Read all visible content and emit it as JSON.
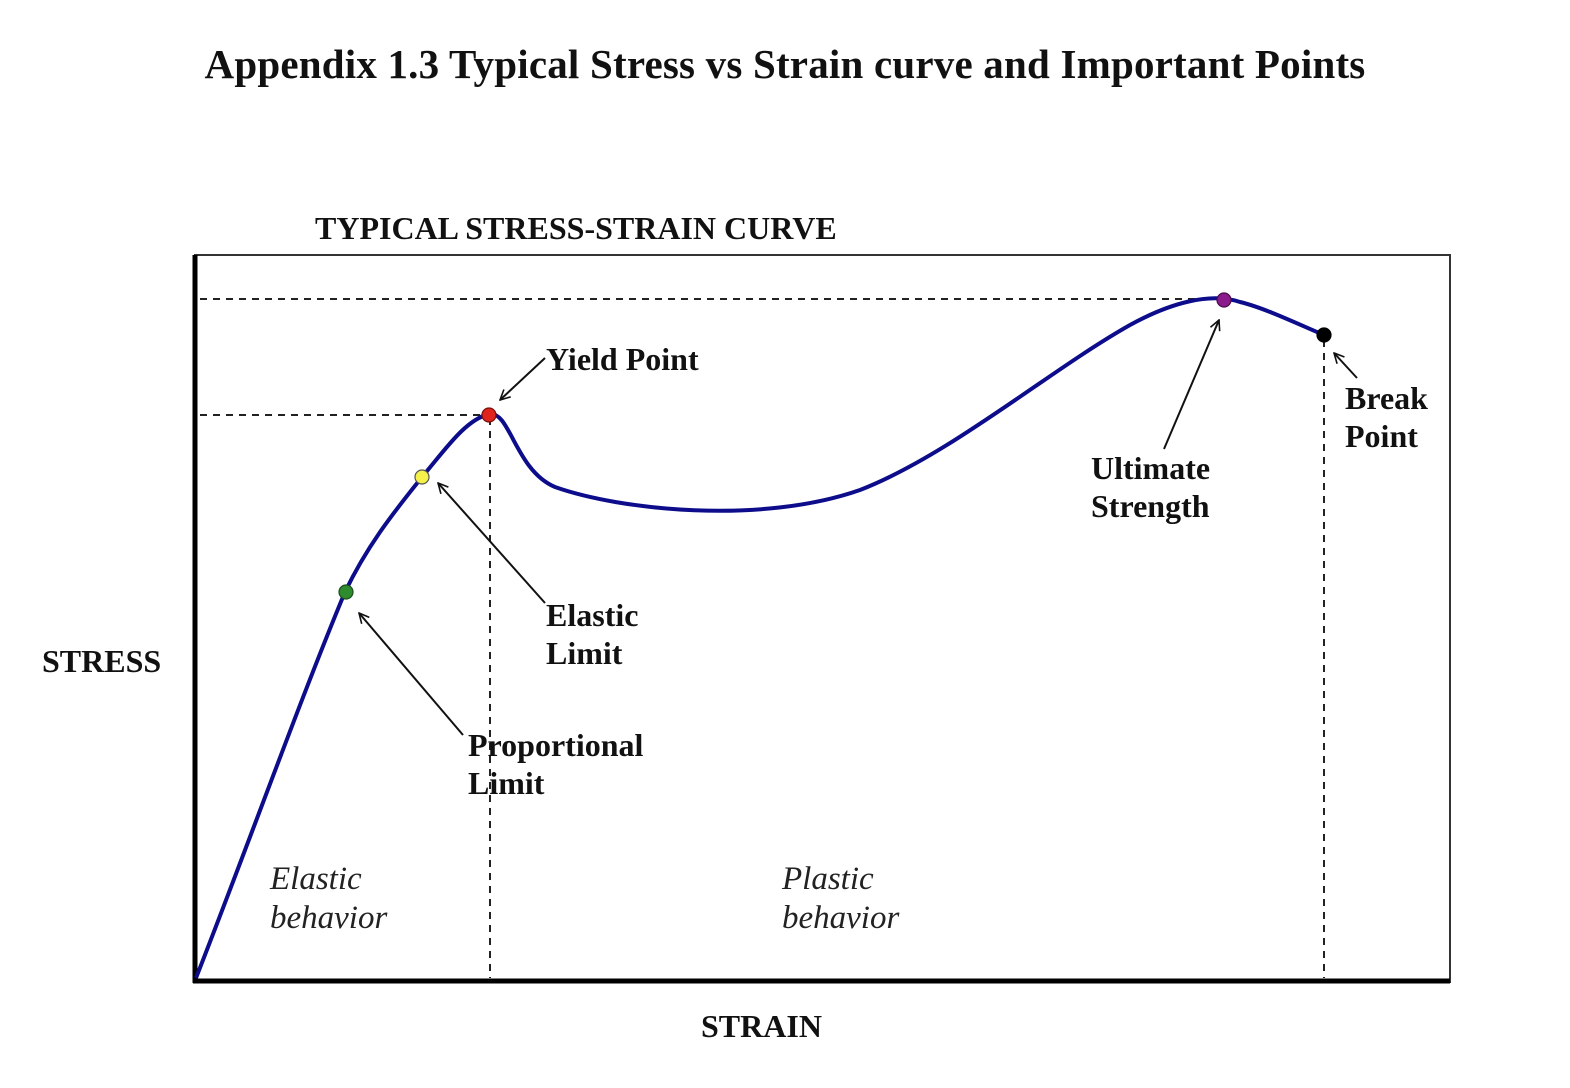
{
  "page": {
    "heading": "Appendix 1.3 Typical Stress vs Strain curve and Important Points"
  },
  "chart": {
    "title": "TYPICAL STRESS-STRAIN CURVE",
    "x_axis_label": "STRAIN",
    "y_axis_label": "STRESS",
    "curve_color": "#0d0d8c",
    "points": {
      "proportional_limit": {
        "label_line1": "Proportional",
        "label_line2": "Limit",
        "color": "#2e8b2e"
      },
      "elastic_limit": {
        "label_line1": "Elastic",
        "label_line2": "Limit",
        "color": "#f5f04a"
      },
      "yield_point": {
        "label": "Yield Point",
        "color": "#e0231c"
      },
      "ultimate_strength": {
        "label_line1": "Ultimate",
        "label_line2": "Strength",
        "color": "#8b1a8b"
      },
      "break_point": {
        "label_line1": "Break",
        "label_line2": "Point",
        "color": "#000000"
      }
    },
    "regions": {
      "elastic": {
        "line1": "Elastic",
        "line2": "behavior"
      },
      "plastic": {
        "line1": "Plastic",
        "line2": "behavior"
      }
    }
  }
}
